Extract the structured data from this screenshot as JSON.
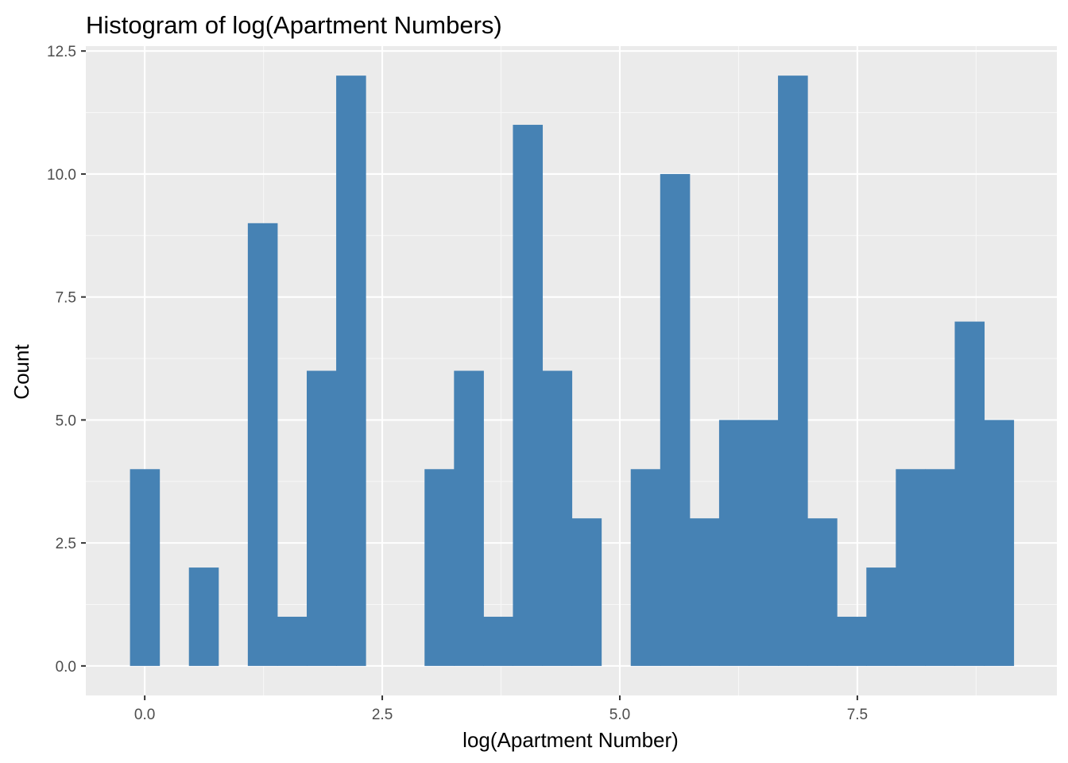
{
  "chart_data": {
    "type": "bar",
    "title": "Histogram of log(Apartment Numbers)",
    "xlabel": "log(Apartment Number)",
    "ylabel": "Count",
    "bin_width": 0.31,
    "bins": [
      {
        "x0": -0.155,
        "x1": 0.155,
        "count": 4
      },
      {
        "x0": 0.155,
        "x1": 0.465,
        "count": 0
      },
      {
        "x0": 0.465,
        "x1": 0.775,
        "count": 2
      },
      {
        "x0": 0.775,
        "x1": 1.085,
        "count": 0
      },
      {
        "x0": 1.085,
        "x1": 1.395,
        "count": 9
      },
      {
        "x0": 1.395,
        "x1": 1.705,
        "count": 1
      },
      {
        "x0": 1.705,
        "x1": 2.015,
        "count": 6
      },
      {
        "x0": 2.015,
        "x1": 2.325,
        "count": 12
      },
      {
        "x0": 2.325,
        "x1": 2.635,
        "count": 0
      },
      {
        "x0": 2.635,
        "x1": 2.945,
        "count": 0
      },
      {
        "x0": 2.945,
        "x1": 3.255,
        "count": 4
      },
      {
        "x0": 3.255,
        "x1": 3.565,
        "count": 6
      },
      {
        "x0": 3.565,
        "x1": 3.875,
        "count": 1
      },
      {
        "x0": 3.875,
        "x1": 4.185,
        "count": 11
      },
      {
        "x0": 4.185,
        "x1": 4.495,
        "count": 6
      },
      {
        "x0": 4.495,
        "x1": 4.805,
        "count": 3
      },
      {
        "x0": 4.805,
        "x1": 5.115,
        "count": 0
      },
      {
        "x0": 5.115,
        "x1": 5.425,
        "count": 4
      },
      {
        "x0": 5.425,
        "x1": 5.735,
        "count": 10
      },
      {
        "x0": 5.735,
        "x1": 6.045,
        "count": 3
      },
      {
        "x0": 6.045,
        "x1": 6.355,
        "count": 5
      },
      {
        "x0": 6.355,
        "x1": 6.665,
        "count": 5
      },
      {
        "x0": 6.665,
        "x1": 6.975,
        "count": 12
      },
      {
        "x0": 6.975,
        "x1": 7.285,
        "count": 3
      },
      {
        "x0": 7.285,
        "x1": 7.595,
        "count": 1
      },
      {
        "x0": 7.595,
        "x1": 7.905,
        "count": 2
      },
      {
        "x0": 7.905,
        "x1": 8.215,
        "count": 4
      },
      {
        "x0": 8.215,
        "x1": 8.525,
        "count": 4
      },
      {
        "x0": 8.525,
        "x1": 8.835,
        "count": 7
      },
      {
        "x0": 8.835,
        "x1": 9.145,
        "count": 5
      }
    ],
    "xlim": [
      -0.62,
      9.6
    ],
    "ylim": [
      -0.6,
      12.6
    ],
    "x_ticks": [
      0.0,
      2.5,
      5.0,
      7.5
    ],
    "x_tick_labels": [
      "0.0",
      "2.5",
      "5.0",
      "7.5"
    ],
    "y_ticks": [
      0.0,
      2.5,
      5.0,
      7.5,
      10.0,
      12.5
    ],
    "y_tick_labels": [
      "0.0",
      "2.5",
      "5.0",
      "7.5",
      "10.0",
      "12.5"
    ],
    "grid": true,
    "colors": {
      "bar_fill": "#4682b4",
      "panel_background": "#ebebeb",
      "grid_major": "#ffffff",
      "grid_minor": "#f7f7f7"
    }
  }
}
